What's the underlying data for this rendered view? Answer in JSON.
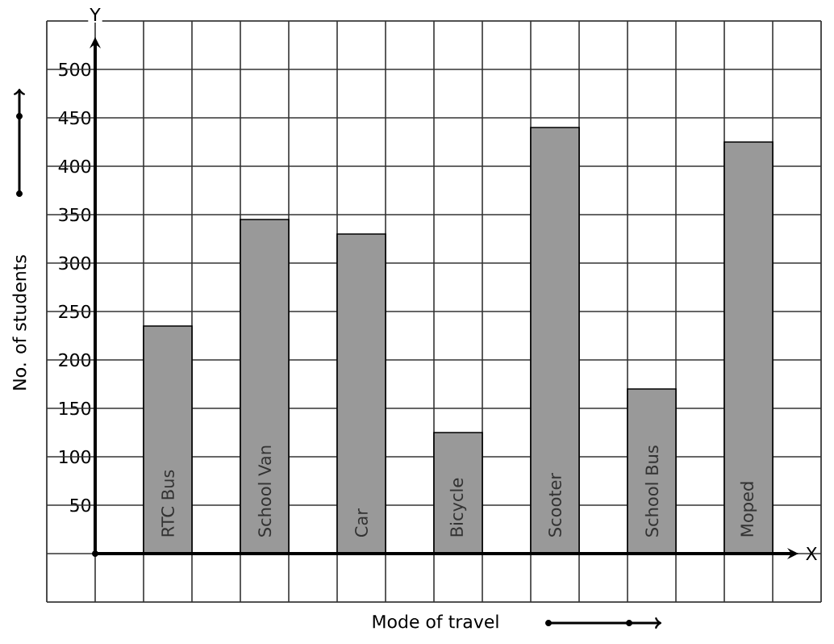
{
  "chart_data": {
    "type": "bar",
    "xlabel": "Mode of travel",
    "ylabel": "No. of students",
    "categories": [
      "RTC Bus",
      "School Van",
      "Car",
      "Bicycle",
      "Scooter",
      "School Bus",
      "Moped"
    ],
    "values": [
      235,
      345,
      330,
      125,
      440,
      170,
      425
    ],
    "color": "#999999",
    "ylim": [
      -50,
      550
    ],
    "yticks": [
      50,
      100,
      150,
      200,
      250,
      300,
      350,
      400,
      450,
      500
    ],
    "grid": true,
    "annotations": [
      "Y",
      "X"
    ]
  }
}
